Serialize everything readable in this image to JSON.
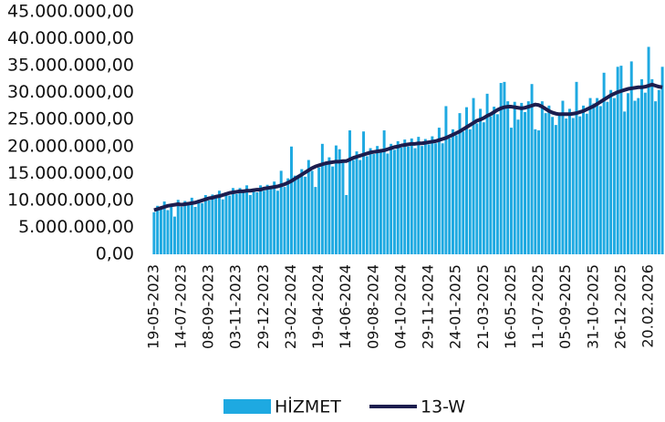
{
  "chart_data": {
    "type": "bar_line",
    "categories": [
      "19-05-2023",
      null,
      null,
      null,
      null,
      null,
      null,
      null,
      "14-07-2023",
      null,
      null,
      null,
      null,
      null,
      null,
      null,
      "08-09-2023",
      null,
      null,
      null,
      null,
      null,
      null,
      null,
      "03-11-2023",
      null,
      null,
      null,
      null,
      null,
      null,
      null,
      "29-12-2023",
      null,
      null,
      null,
      null,
      null,
      null,
      null,
      "23-02-2024",
      null,
      null,
      null,
      null,
      null,
      null,
      null,
      "19-04-2024",
      null,
      null,
      null,
      null,
      null,
      null,
      null,
      "14-06-2024",
      null,
      null,
      null,
      null,
      null,
      null,
      null,
      "09-08-2024",
      null,
      null,
      null,
      null,
      null,
      null,
      null,
      "04-10-2024",
      null,
      null,
      null,
      null,
      null,
      null,
      null,
      "29-11-2024",
      null,
      null,
      null,
      null,
      null,
      null,
      null,
      "24-01-2025",
      null,
      null,
      null,
      null,
      null,
      null,
      null,
      "21-03-2025",
      null,
      null,
      null,
      null,
      null,
      null,
      null,
      "16-05-2025",
      null,
      null,
      null,
      null,
      null,
      null,
      null,
      "11-07-2025",
      null,
      null,
      null,
      null,
      null,
      null,
      null,
      "05-09-2025",
      null,
      null,
      null,
      null,
      null,
      null,
      null,
      "31-10-2025",
      null,
      null,
      null,
      null,
      null,
      null,
      null,
      "26-12-2025",
      null,
      null,
      null,
      null,
      null,
      null,
      null,
      "20.02.2026",
      null,
      null,
      null,
      null
    ],
    "series": [
      {
        "name": "HİZMET",
        "kind": "bar",
        "color": "#1ea9e1",
        "values": [
          7800000,
          9000000,
          8400000,
          9800000,
          8200000,
          9400000,
          7000000,
          10100000,
          8800000,
          9900000,
          9200000,
          10500000,
          8800000,
          10100000,
          9500000,
          11000000,
          10000000,
          11100000,
          10500000,
          11800000,
          10200000,
          11500000,
          10900000,
          12300000,
          11200000,
          12300000,
          11500000,
          12800000,
          11000000,
          12200000,
          11500000,
          12800000,
          11800000,
          12900000,
          12200000,
          13500000,
          11800000,
          15500000,
          12500000,
          14100000,
          20000000,
          14600000,
          14200000,
          15800000,
          14400000,
          17500000,
          15500000,
          12500000,
          16100000,
          20500000,
          16700000,
          18000000,
          16300000,
          20200000,
          19500000,
          17000000,
          11000000,
          23000000,
          17500000,
          19100000,
          17500000,
          22800000,
          18200000,
          19700000,
          18600000,
          20100000,
          19000000,
          23000000,
          18700000,
          20500000,
          19400000,
          21000000,
          19800000,
          21300000,
          20000000,
          21500000,
          19700000,
          21800000,
          20100000,
          21400000,
          20400000,
          21900000,
          20600000,
          23500000,
          20600000,
          27500000,
          21500000,
          23200000,
          22100000,
          26200000,
          22800000,
          27300000,
          23200000,
          29000000,
          24300000,
          27000000,
          24500000,
          29800000,
          25600000,
          27400000,
          26000000,
          31800000,
          32000000,
          28400000,
          23500000,
          28300000,
          25000000,
          28100000,
          26400000,
          28400000,
          31600000,
          23200000,
          23000000,
          28400000,
          26200000,
          27600000,
          25500000,
          24000000,
          26000000,
          28500000,
          25200000,
          27000000,
          25300000,
          32000000,
          25600000,
          27600000,
          26100000,
          29000000,
          28000000,
          29000000,
          27500000,
          33700000,
          28300000,
          30500000,
          29000000,
          34800000,
          35000000,
          26500000,
          29900000,
          35800000,
          28500000,
          29000000,
          32500000,
          30000000,
          38500000,
          32500000,
          28400000,
          30500000,
          34800000
        ]
      },
      {
        "name": "13-W",
        "kind": "line",
        "color": "#1c1d4e",
        "values": [
          8200000,
          8400000,
          8600000,
          8800000,
          9000000,
          9100000,
          9200000,
          9300000,
          9200000,
          9300000,
          9400000,
          9500000,
          9600000,
          9800000,
          10000000,
          10200000,
          10400000,
          10500000,
          10700000,
          10800000,
          11000000,
          11200000,
          11400000,
          11500000,
          11600000,
          11700000,
          11700000,
          11800000,
          11800000,
          11900000,
          12000000,
          12000000,
          12200000,
          12300000,
          12400000,
          12500000,
          12600000,
          12800000,
          13000000,
          13300000,
          13600000,
          14000000,
          14400000,
          14800000,
          15200000,
          15600000,
          16000000,
          16300000,
          16500000,
          16700000,
          16900000,
          17000000,
          17100000,
          17200000,
          17200000,
          17300000,
          17300000,
          17600000,
          17900000,
          18100000,
          18300000,
          18500000,
          18700000,
          18900000,
          19000000,
          19100000,
          19200000,
          19300000,
          19500000,
          19700000,
          19900000,
          20000000,
          20200000,
          20300000,
          20400000,
          20500000,
          20500000,
          20600000,
          20600000,
          20700000,
          20800000,
          20900000,
          21000000,
          21200000,
          21400000,
          21600000,
          21900000,
          22200000,
          22500000,
          22800000,
          23200000,
          23600000,
          24000000,
          24400000,
          24800000,
          25000000,
          25300000,
          25700000,
          26000000,
          26400000,
          26800000,
          27100000,
          27300000,
          27400000,
          27400000,
          27300000,
          27200000,
          27100000,
          27200000,
          27400000,
          27600000,
          27800000,
          27700000,
          27400000,
          27000000,
          26600000,
          26300000,
          26100000,
          26000000,
          26000000,
          26000000,
          26000000,
          26100000,
          26200000,
          26400000,
          26600000,
          26900000,
          27200000,
          27500000,
          27900000,
          28300000,
          28700000,
          29100000,
          29500000,
          29800000,
          30100000,
          30300000,
          30500000,
          30700000,
          30800000,
          30900000,
          31000000,
          31000000,
          31100000,
          31300000,
          31500000,
          31300000,
          31100000,
          31000000
        ]
      }
    ],
    "ylim": [
      0,
      45000000
    ],
    "yticks": [
      {
        "value": 0,
        "label": "0,00"
      },
      {
        "value": 5000000,
        "label": "5.000.000,00"
      },
      {
        "value": 10000000,
        "label": "10.000.000,00"
      },
      {
        "value": 15000000,
        "label": "15.000.000,00"
      },
      {
        "value": 20000000,
        "label": "20.000.000,00"
      },
      {
        "value": 25000000,
        "label": "25.000.000,00"
      },
      {
        "value": 30000000,
        "label": "30.000.000,00"
      },
      {
        "value": 35000000,
        "label": "35.000.000,00"
      },
      {
        "value": 40000000,
        "label": "40.000.000,00"
      },
      {
        "value": 45000000,
        "label": "45.000.000,00"
      }
    ],
    "grid": false,
    "legend": "bottom"
  }
}
